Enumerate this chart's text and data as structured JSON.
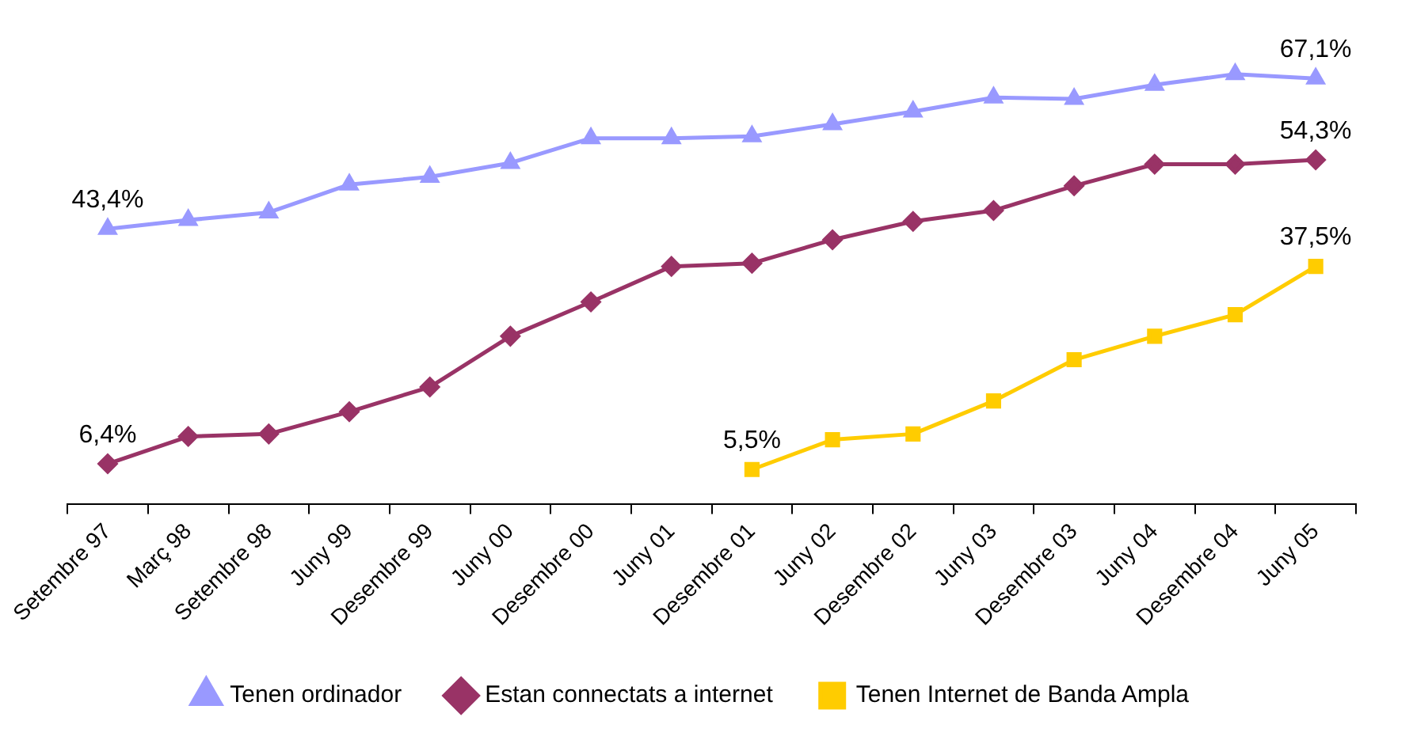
{
  "chart_data": {
    "type": "line",
    "categories": [
      "Setembre 97",
      "Març 98",
      "Setembre 98",
      "Juny 99",
      "Desembre 99",
      "Juny 00",
      "Desembre 00",
      "Juny 01",
      "Desembre 01",
      "Juny 02",
      "Desembre 02",
      "Juny 03",
      "Desembre 03",
      "Juny 04",
      "Desembre 04",
      "Juny 05"
    ],
    "grid": false,
    "legend": "bottom",
    "tick_labels": "x",
    "series": [
      {
        "name": "Tenen ordinador",
        "color": "#9999ff",
        "marker": "triangle",
        "values": [
          43.4,
          44.8,
          46.0,
          50.4,
          51.6,
          53.8,
          57.7,
          57.7,
          58.0,
          59.9,
          61.9,
          64.1,
          63.9,
          66.1,
          67.8,
          67.1
        ],
        "value_labels": [
          "43,4%",
          null,
          null,
          null,
          null,
          null,
          null,
          null,
          null,
          null,
          null,
          null,
          null,
          null,
          null,
          "67,1%"
        ]
      },
      {
        "name": "Estan connectats a internet",
        "color": "#993366",
        "marker": "diamond",
        "values": [
          6.4,
          10.7,
          11.1,
          14.6,
          18.5,
          26.5,
          31.9,
          37.5,
          38.0,
          41.7,
          44.6,
          46.3,
          50.2,
          53.6,
          53.6,
          54.3
        ],
        "value_labels": [
          "6,4%",
          null,
          null,
          null,
          null,
          null,
          null,
          null,
          null,
          null,
          null,
          null,
          null,
          null,
          null,
          "54,3%"
        ]
      },
      {
        "name": "Tenen Internet de Banda Ampla",
        "color": "#ffcc00",
        "marker": "square",
        "values": [
          null,
          null,
          null,
          null,
          null,
          null,
          null,
          null,
          5.5,
          10.2,
          11.1,
          16.3,
          22.8,
          26.5,
          29.9,
          37.5
        ],
        "value_labels": [
          null,
          null,
          null,
          null,
          null,
          null,
          null,
          null,
          "5,5%",
          null,
          null,
          null,
          null,
          null,
          null,
          "37,5%"
        ]
      }
    ]
  }
}
